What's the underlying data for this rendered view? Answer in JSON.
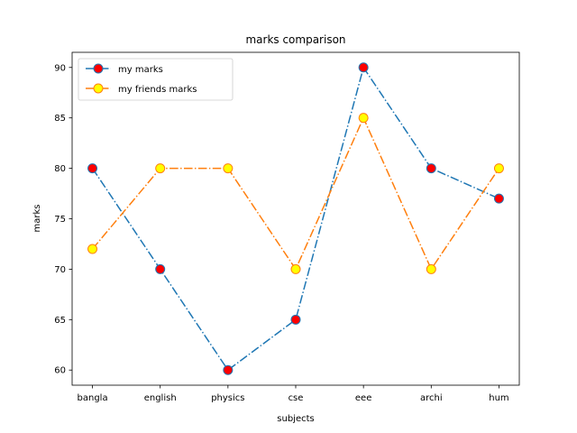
{
  "chart_data": {
    "type": "line",
    "title": "marks comparison",
    "xlabel": "subjects",
    "ylabel": "marks",
    "categories": [
      "bangla",
      "english",
      "physics",
      "cse",
      "eee",
      "archi",
      "hum"
    ],
    "ylim": [
      58.5,
      91.5
    ],
    "yticks": [
      60,
      65,
      70,
      75,
      80,
      85,
      90
    ],
    "grid": false,
    "legend_position": "upper-left",
    "series": [
      {
        "name": "my marks",
        "values": [
          80,
          70,
          60,
          65,
          90,
          80,
          77
        ],
        "line_color": "#1f77b4",
        "marker_face": "#ff0000",
        "marker_edge": "#1f77b4",
        "line_style": "dash-dot"
      },
      {
        "name": "my friends marks",
        "values": [
          72,
          80,
          80,
          70,
          85,
          70,
          80
        ],
        "line_color": "#ff7f0e",
        "marker_face": "#ffff00",
        "marker_edge": "#ff7f0e",
        "line_style": "dash-dot"
      }
    ]
  }
}
